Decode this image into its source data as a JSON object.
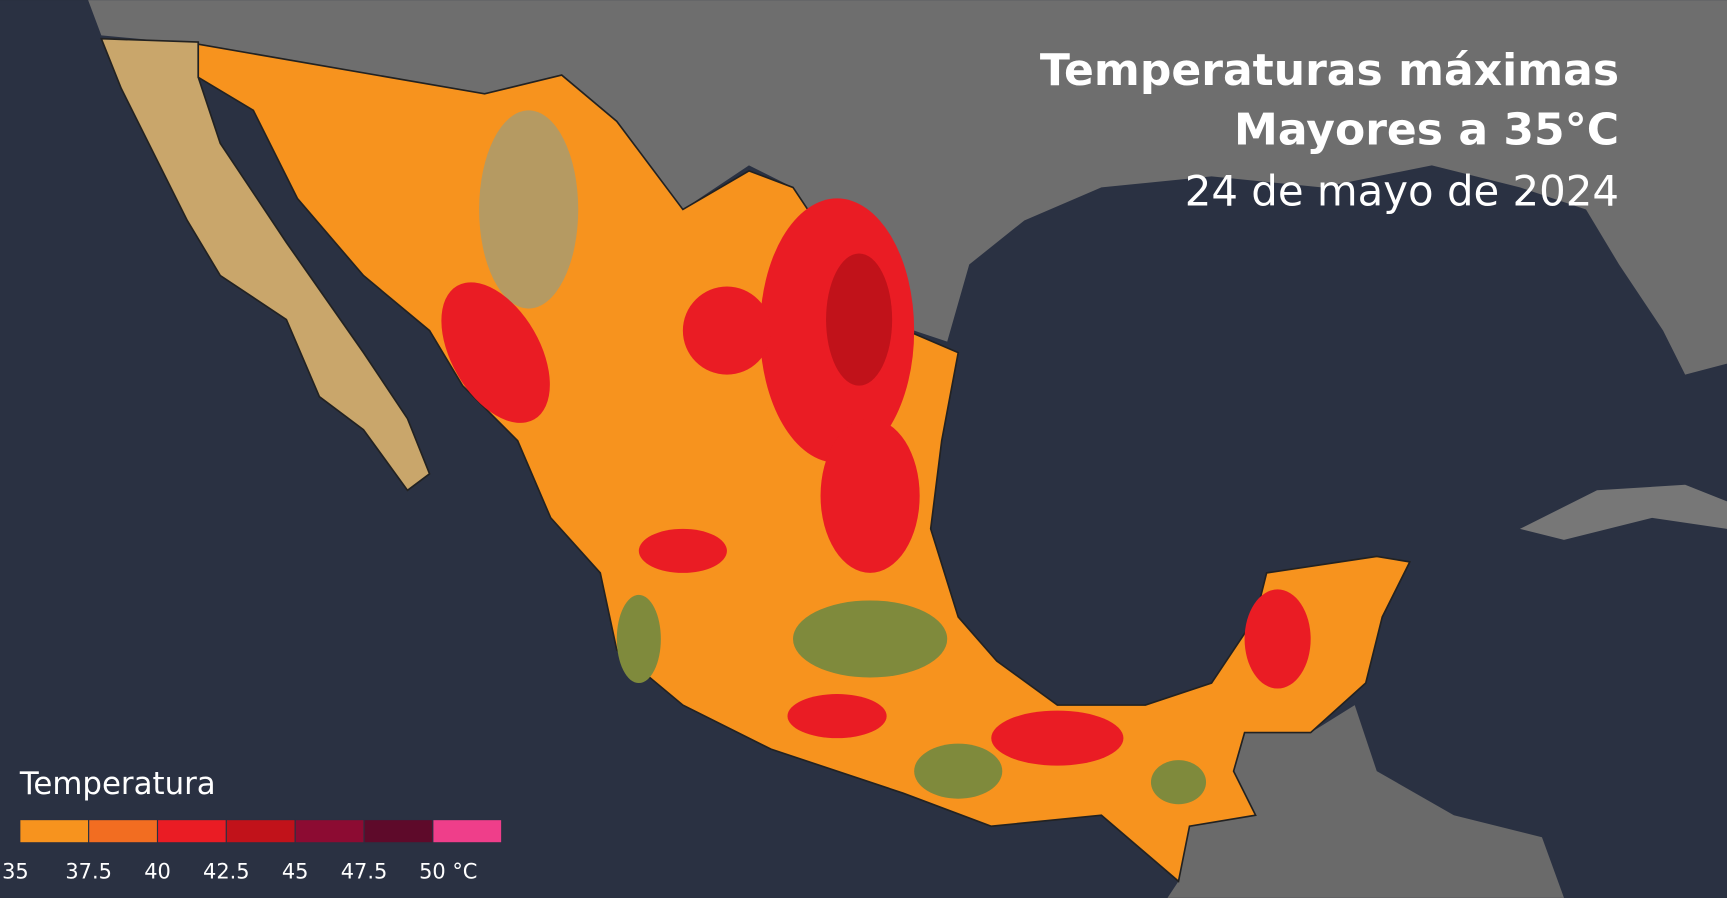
{
  "header": {
    "title_line_1": "Temperaturas máximas",
    "title_line_2": "Mayores a 35°C",
    "date": "24 de mayo de 2024"
  },
  "legend": {
    "title": "Temperatura",
    "labels": [
      "35",
      "37.5",
      "40",
      "42.5",
      "45",
      "47.5",
      "50 °C"
    ],
    "colors": [
      "#f7931e",
      "#f26d21",
      "#ea1c24",
      "#c1121a",
      "#8c0b32",
      "#5e0a2a",
      "#ef3e8a"
    ]
  }
}
